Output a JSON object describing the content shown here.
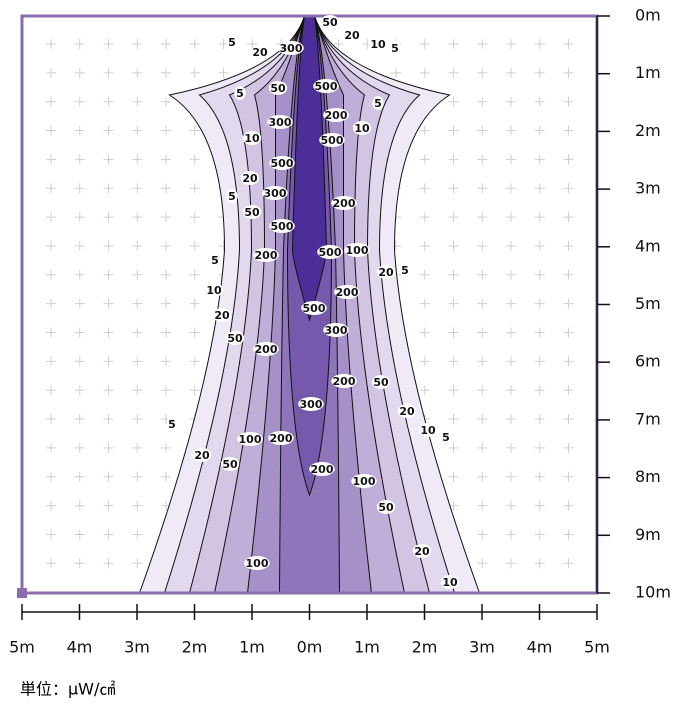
{
  "chart_data": {
    "type": "contour",
    "xticks": [
      {
        "value": -5,
        "label": "5m"
      },
      {
        "value": -4,
        "label": "4m"
      },
      {
        "value": -3,
        "label": "3m"
      },
      {
        "value": -2,
        "label": "2m"
      },
      {
        "value": -1,
        "label": "1m"
      },
      {
        "value": 0,
        "label": "0m"
      },
      {
        "value": 1,
        "label": "1m"
      },
      {
        "value": 2,
        "label": "2m"
      },
      {
        "value": 3,
        "label": "3m"
      },
      {
        "value": 4,
        "label": "4m"
      },
      {
        "value": 5,
        "label": "5m"
      }
    ],
    "xlim": [
      -5,
      5
    ],
    "yticks": [
      {
        "value": 0,
        "label": "0m"
      },
      {
        "value": 1,
        "label": "1m"
      },
      {
        "value": 2,
        "label": "2m"
      },
      {
        "value": 3,
        "label": "3m"
      },
      {
        "value": 4,
        "label": "4m"
      },
      {
        "value": 5,
        "label": "5m"
      },
      {
        "value": 6,
        "label": "6m"
      },
      {
        "value": 7,
        "label": "7m"
      },
      {
        "value": 8,
        "label": "8m"
      },
      {
        "value": 9,
        "label": "9m"
      },
      {
        "value": 10,
        "label": "10m"
      }
    ],
    "ylim": [
      0,
      10
    ],
    "levels": [
      5,
      10,
      20,
      50,
      100,
      200,
      300,
      500
    ],
    "level_colors": [
      "#efeaf5",
      "#e2d9ee",
      "#d2c5e4",
      "#bfaed8",
      "#a690c8",
      "#8f76bb",
      "#7659ad",
      "#4b2e98"
    ],
    "contour_labels": [
      50,
      20,
      10,
      5,
      5,
      20,
      300,
      50,
      500,
      5,
      5,
      300,
      200,
      10,
      10,
      500,
      500,
      20,
      300,
      5,
      200,
      50,
      500,
      200,
      500,
      100,
      5,
      20,
      5,
      10,
      200,
      20,
      500,
      300,
      50,
      200,
      200,
      50,
      300,
      20,
      5,
      10,
      5,
      100,
      200,
      20,
      50,
      200,
      100,
      50,
      20,
      100,
      10
    ],
    "unit_label": "単位：μW/㎠",
    "frame_color": "#8a6cae"
  }
}
